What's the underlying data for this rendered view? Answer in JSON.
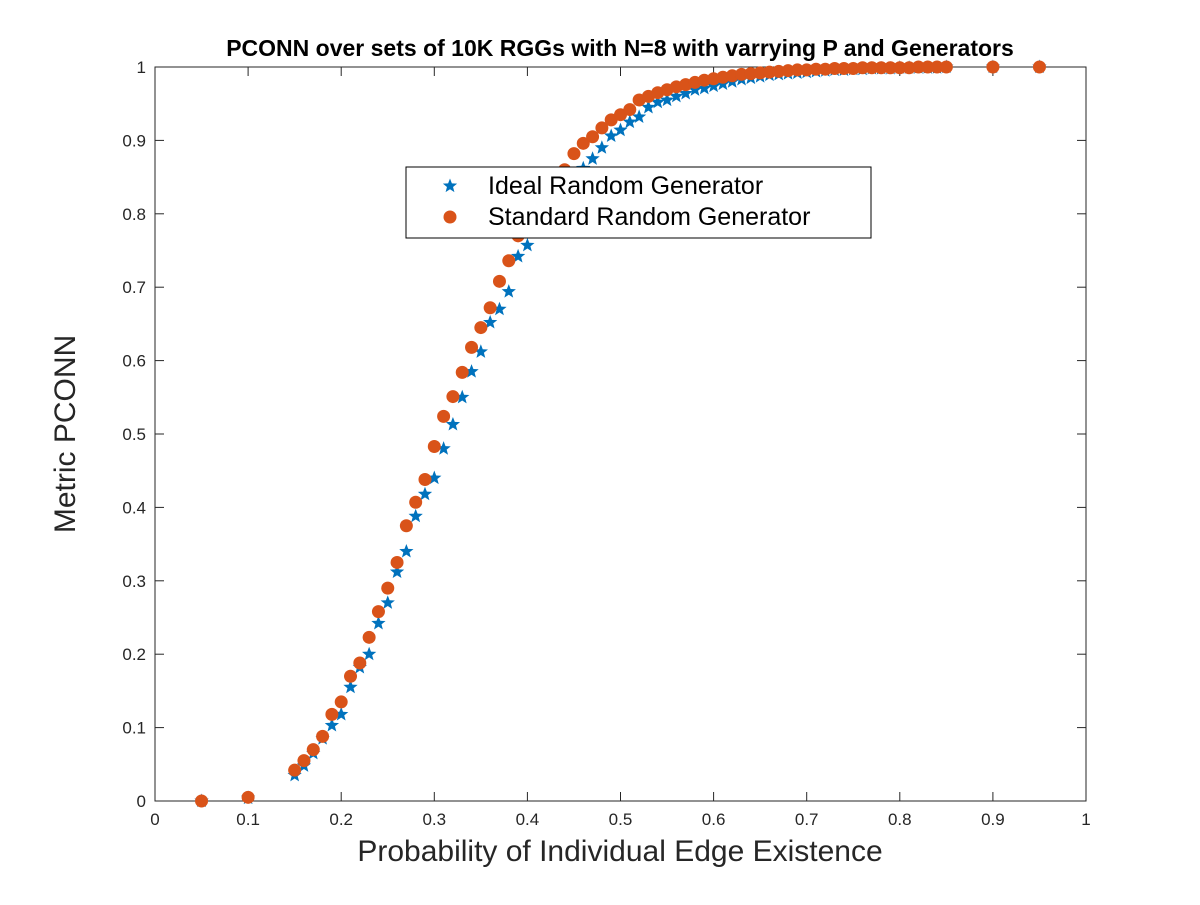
{
  "chart_data": {
    "type": "scatter",
    "title": "PCONN over sets of 10K RGGs with N=8 with varrying P and Generators",
    "xlabel": "Probability of Individual Edge Existence",
    "ylabel": "Metric PCONN",
    "xlim": [
      0,
      1
    ],
    "ylim": [
      0,
      1
    ],
    "xticks": [
      "0",
      "0.1",
      "0.2",
      "0.3",
      "0.4",
      "0.5",
      "0.6",
      "0.7",
      "0.8",
      "0.9",
      "1"
    ],
    "yticks": [
      "0",
      "0.1",
      "0.2",
      "0.3",
      "0.4",
      "0.5",
      "0.6",
      "0.7",
      "0.8",
      "0.9",
      "1"
    ],
    "grid": false,
    "legend_position": "top-center",
    "series": [
      {
        "name": "Ideal Random Generator",
        "marker": "star",
        "color": "#0072BD",
        "x": [
          0.05,
          0.1,
          0.15,
          0.16,
          0.17,
          0.18,
          0.19,
          0.2,
          0.21,
          0.22,
          0.23,
          0.24,
          0.25,
          0.26,
          0.27,
          0.28,
          0.29,
          0.3,
          0.31,
          0.32,
          0.33,
          0.34,
          0.35,
          0.36,
          0.37,
          0.38,
          0.39,
          0.4,
          0.41,
          0.42,
          0.43,
          0.44,
          0.45,
          0.46,
          0.47,
          0.48,
          0.49,
          0.5,
          0.51,
          0.52,
          0.53,
          0.54,
          0.55,
          0.56,
          0.57,
          0.58,
          0.59,
          0.6,
          0.61,
          0.62,
          0.63,
          0.64,
          0.65,
          0.66,
          0.67,
          0.68,
          0.69,
          0.7,
          0.71,
          0.72,
          0.73,
          0.74,
          0.75,
          0.76,
          0.77,
          0.78,
          0.79,
          0.8,
          0.81,
          0.82,
          0.83,
          0.84,
          0.85,
          0.9,
          0.95
        ],
        "y": [
          0.0,
          0.004,
          0.035,
          0.048,
          0.065,
          0.085,
          0.103,
          0.118,
          0.155,
          0.182,
          0.2,
          0.242,
          0.27,
          0.312,
          0.34,
          0.388,
          0.418,
          0.44,
          0.48,
          0.513,
          0.55,
          0.585,
          0.612,
          0.652,
          0.67,
          0.694,
          0.742,
          0.757,
          0.781,
          0.806,
          0.823,
          0.843,
          0.853,
          0.862,
          0.875,
          0.89,
          0.906,
          0.914,
          0.925,
          0.932,
          0.945,
          0.952,
          0.955,
          0.96,
          0.964,
          0.969,
          0.971,
          0.974,
          0.977,
          0.98,
          0.983,
          0.985,
          0.987,
          0.989,
          0.99,
          0.991,
          0.992,
          0.993,
          0.994,
          0.995,
          0.996,
          0.996,
          0.997,
          0.997,
          0.998,
          0.998,
          0.998,
          0.999,
          0.999,
          0.999,
          0.999,
          0.999,
          1.0,
          1.0,
          1.0
        ]
      },
      {
        "name": "Standard Random Generator",
        "marker": "circle",
        "color": "#D95319",
        "x": [
          0.05,
          0.1,
          0.15,
          0.16,
          0.17,
          0.18,
          0.19,
          0.2,
          0.21,
          0.22,
          0.23,
          0.24,
          0.25,
          0.26,
          0.27,
          0.28,
          0.29,
          0.3,
          0.31,
          0.32,
          0.33,
          0.34,
          0.35,
          0.36,
          0.37,
          0.38,
          0.39,
          0.4,
          0.41,
          0.42,
          0.43,
          0.44,
          0.45,
          0.46,
          0.47,
          0.48,
          0.49,
          0.5,
          0.51,
          0.52,
          0.53,
          0.54,
          0.55,
          0.56,
          0.57,
          0.58,
          0.59,
          0.6,
          0.61,
          0.62,
          0.63,
          0.64,
          0.65,
          0.66,
          0.67,
          0.68,
          0.69,
          0.7,
          0.71,
          0.72,
          0.73,
          0.74,
          0.75,
          0.76,
          0.77,
          0.78,
          0.79,
          0.8,
          0.81,
          0.82,
          0.83,
          0.84,
          0.85,
          0.9,
          0.95
        ],
        "y": [
          0.0,
          0.005,
          0.042,
          0.055,
          0.07,
          0.088,
          0.118,
          0.135,
          0.17,
          0.188,
          0.223,
          0.258,
          0.29,
          0.325,
          0.375,
          0.407,
          0.438,
          0.483,
          0.524,
          0.551,
          0.584,
          0.618,
          0.645,
          0.672,
          0.708,
          0.736,
          0.77,
          0.79,
          0.812,
          0.83,
          0.845,
          0.86,
          0.882,
          0.896,
          0.905,
          0.917,
          0.928,
          0.935,
          0.942,
          0.955,
          0.96,
          0.965,
          0.969,
          0.973,
          0.976,
          0.979,
          0.982,
          0.984,
          0.986,
          0.988,
          0.99,
          0.991,
          0.992,
          0.993,
          0.994,
          0.995,
          0.996,
          0.996,
          0.997,
          0.997,
          0.998,
          0.998,
          0.998,
          0.999,
          0.999,
          0.999,
          0.999,
          0.999,
          0.999,
          1.0,
          1.0,
          1.0,
          1.0,
          1.0,
          1.0
        ]
      }
    ]
  }
}
